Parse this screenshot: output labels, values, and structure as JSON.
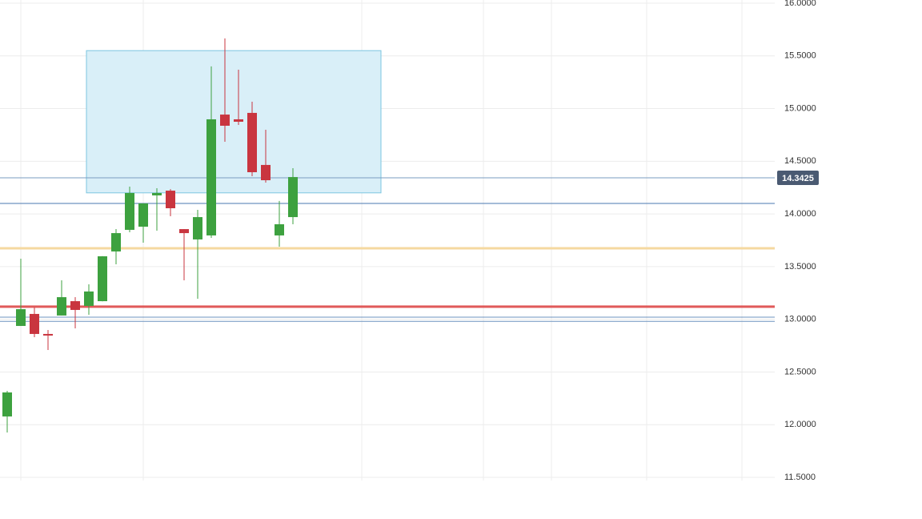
{
  "chart_data": {
    "type": "candlestick",
    "categories": [
      null,
      null,
      null,
      null,
      null,
      null,
      null,
      null,
      null,
      null,
      null,
      null,
      null,
      null,
      null,
      null,
      null,
      null,
      null,
      null,
      null,
      null
    ],
    "open": [
      12.078,
      12.937,
      13.051,
      12.861,
      13.036,
      13.172,
      13.127,
      13.172,
      13.644,
      13.849,
      13.879,
      14.176,
      14.221,
      13.856,
      13.758,
      13.796,
      14.943,
      14.898,
      14.959,
      14.465,
      13.796,
      13.97
    ],
    "high": [
      12.321,
      13.575,
      13.112,
      12.899,
      13.37,
      13.21,
      13.332,
      13.6,
      13.856,
      14.259,
      14.1,
      14.244,
      14.236,
      13.856,
      14.039,
      15.4,
      15.666,
      15.369,
      15.065,
      14.799,
      14.123,
      14.434
    ],
    "low": [
      11.926,
      12.937,
      12.83,
      12.709,
      13.036,
      12.914,
      13.043,
      13.17,
      13.522,
      13.826,
      13.727,
      13.841,
      13.978,
      13.37,
      13.195,
      13.773,
      14.685,
      14.845,
      14.358,
      14.297,
      13.689,
      13.902
    ],
    "close": [
      12.306,
      13.096,
      12.861,
      12.846,
      13.21,
      13.089,
      13.264,
      13.598,
      13.818,
      14.199,
      14.1,
      14.199,
      14.054,
      13.818,
      13.97,
      14.898,
      14.837,
      14.875,
      14.396,
      14.32,
      13.902,
      14.35
    ],
    "up_color": "#3da13f",
    "down_color": "#c9353f",
    "ylim": [
      11.5,
      16.0
    ],
    "yticks": [
      {
        "value": 11.5,
        "label": "11.5000"
      },
      {
        "value": 12,
        "label": "12.0000"
      },
      {
        "value": 12.5,
        "label": "12.5000"
      },
      {
        "value": 13,
        "label": "13.0000"
      },
      {
        "value": 13.5,
        "label": "13.5000"
      },
      {
        "value": 14,
        "label": "14.0000"
      },
      {
        "value": 14.5,
        "label": "14.5000"
      },
      {
        "value": 15,
        "label": "15.0000"
      },
      {
        "value": 15.5,
        "label": "15.5000"
      },
      {
        "value": 16,
        "label": "16.0000"
      }
    ],
    "grid": true,
    "zone": {
      "top": 15.55,
      "bottom": 14.2,
      "color": "#d9eff8"
    },
    "levels": [
      {
        "value": 14.3425,
        "color": "#7a9cc0"
      },
      {
        "value": 14.1,
        "color": "#4a78b0"
      },
      {
        "value": 13.674,
        "color": "#f5d9a0"
      },
      {
        "value": 13.12,
        "color": "#e05a5a"
      },
      {
        "value": 13.02,
        "color": "#6d93bf"
      },
      {
        "value": 12.98,
        "color": "#6d93bf"
      }
    ],
    "last_price": 14.3425
  }
}
